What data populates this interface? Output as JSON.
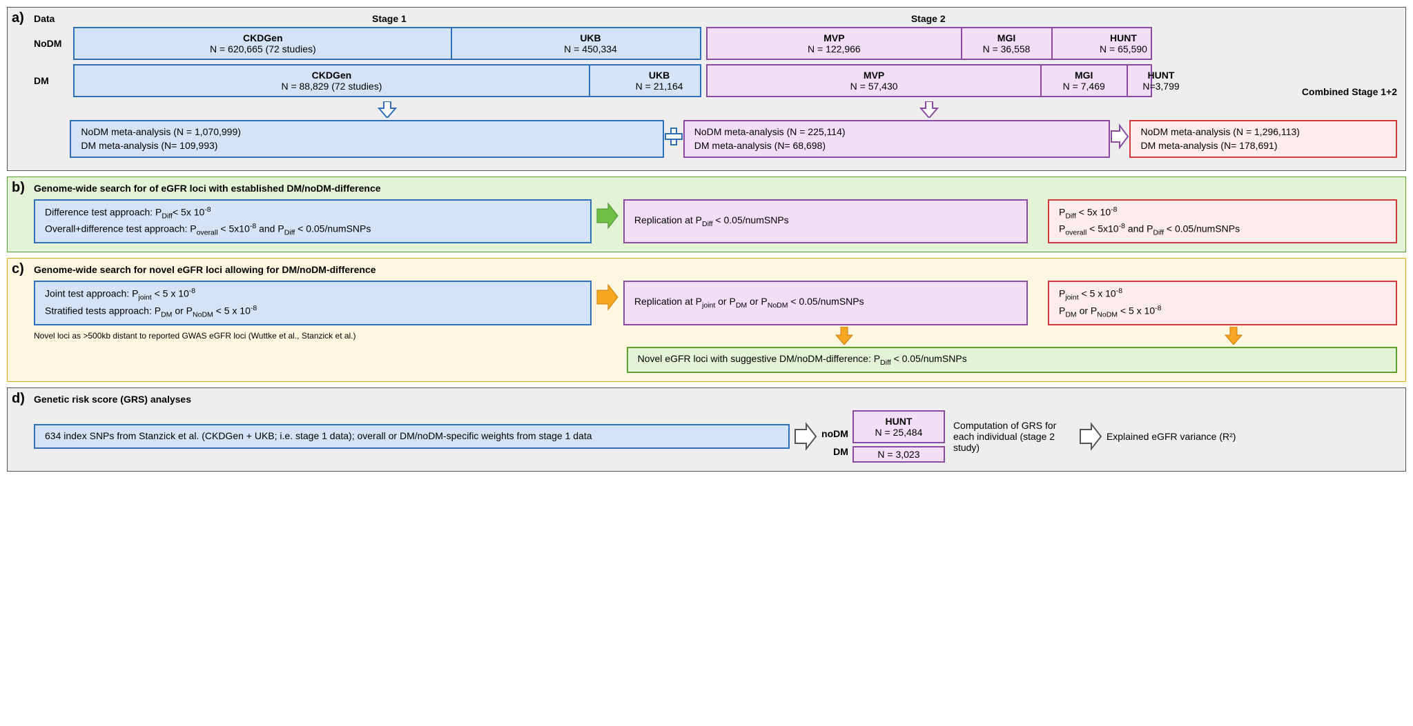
{
  "a": {
    "letter": "a)",
    "data_label": "Data",
    "stage1_label": "Stage 1",
    "stage2_label": "Stage 2",
    "combined_label": "Combined Stage 1+2",
    "rows": {
      "nodm": "NoDM",
      "dm": "DM"
    },
    "nodm": {
      "ckdgen_name": "CKDGen",
      "ckdgen_n": "N = 620,665 (72 studies)",
      "ukb_name": "UKB",
      "ukb_n": "N = 450,334",
      "mvp_name": "MVP",
      "mvp_n": "N = 122,966",
      "mgi_name": "MGI",
      "mgi_n": "N = 36,558",
      "hunt_name": "HUNT",
      "hunt_n": "N = 65,590"
    },
    "dm": {
      "ckdgen_name": "CKDGen",
      "ckdgen_n": "N = 88,829 (72 studies)",
      "ukb_name": "UKB",
      "ukb_n": "N = 21,164",
      "mvp_name": "MVP",
      "mvp_n": "N = 57,430",
      "mgi_name": "MGI",
      "mgi_n": "N = 7,469",
      "hunt_name": "HUNT",
      "hunt_n": "N=3,799"
    },
    "meta_stage1_line1": "NoDM meta-analysis (N = 1,070,999)",
    "meta_stage1_line2": "DM meta-analysis (N= 109,993)",
    "meta_stage2_line1": "NoDM meta-analysis (N = 225,114)",
    "meta_stage2_line2": "DM meta-analysis (N= 68,698)",
    "meta_comb_line1": "NoDM meta-analysis (N = 1,296,113)",
    "meta_comb_line2": "DM meta-analysis (N= 178,691)"
  },
  "b": {
    "letter": "b)",
    "title": "Genome-wide search for of eGFR loci with established DM/noDM-difference",
    "left_l1_html": "Difference test approach: P<sub>Diff</sub>&lt; 5x 10<sup>-8</sup>",
    "left_l2_html": "Overall+difference test approach: P<sub>overall</sub> &lt; 5x10<sup>-8</sup> and P<sub>Diff</sub> &lt; 0.05/numSNPs",
    "mid_html": "Replication at P<sub>Diff</sub> &lt; 0.05/numSNPs",
    "right_l1_html": "P<sub>Diff</sub> &lt; 5x 10<sup>-8</sup>",
    "right_l2_html": "P<sub>overall</sub> &lt; 5x10<sup>-8</sup> and P<sub>Diff</sub> &lt; 0.05/numSNPs"
  },
  "c": {
    "letter": "c)",
    "title": "Genome-wide search for novel eGFR loci allowing for DM/noDM-difference",
    "left_l1_html": "Joint test approach: P<sub>joint</sub> &lt; 5 x  10<sup>-8</sup>",
    "left_l2_html": "Stratified tests approach: P<sub>DM</sub> or P<sub>NoDM</sub> &lt; 5 x  10<sup>-8</sup>",
    "mid_html": "Replication at P<sub>joint</sub> or P<sub>DM</sub> or P<sub>NoDM</sub> &lt; 0.05/numSNPs",
    "right_l1_html": "P<sub>joint</sub> &lt; 5 x  10<sup>-8</sup>",
    "right_l2_html": "P<sub>DM</sub> or P<sub>NoDM</sub> &lt; 5 x  10<sup>-8</sup>",
    "novel_box_html": "Novel eGFR loci with suggestive DM/noDM-difference: P<sub>Diff</sub> &lt; 0.05/numSNPs",
    "footnote": "Novel loci as >500kb distant to reported GWAS eGFR loci (Wuttke et al., Stanzick et al.)"
  },
  "d": {
    "letter": "d)",
    "title": "Genetic risk score (GRS) analyses",
    "left_text": "634 index SNPs from Stanzick et al. (CKDGen + UKB; i.e. stage 1 data); overall or DM/noDM-specific weights from stage 1 data",
    "nodm_label": "noDM",
    "dm_label": "DM",
    "hunt_name": "HUNT",
    "hunt_nodm_n": "N = 25,484",
    "hunt_dm_n": "N = 3,023",
    "grs_text": "Computation of GRS for each individual (stage 2 study)",
    "result_text": "Explained eGFR variance (R²)"
  },
  "colors": {
    "blue_border": "#2f6eba",
    "blue_fill": "#d4e3f5",
    "purple_border": "#8a4aa3",
    "purple_fill": "#f2dff7",
    "red_border": "#d4383a",
    "red_fill": "#ffecec",
    "green_border": "#5aa02c",
    "green_fill": "#e4f3d6",
    "yellow_border": "#e0a800",
    "yellow_fill": "#fff7e0",
    "orange_arrow": "#f5a623",
    "green_arrow": "#6fbf44"
  }
}
